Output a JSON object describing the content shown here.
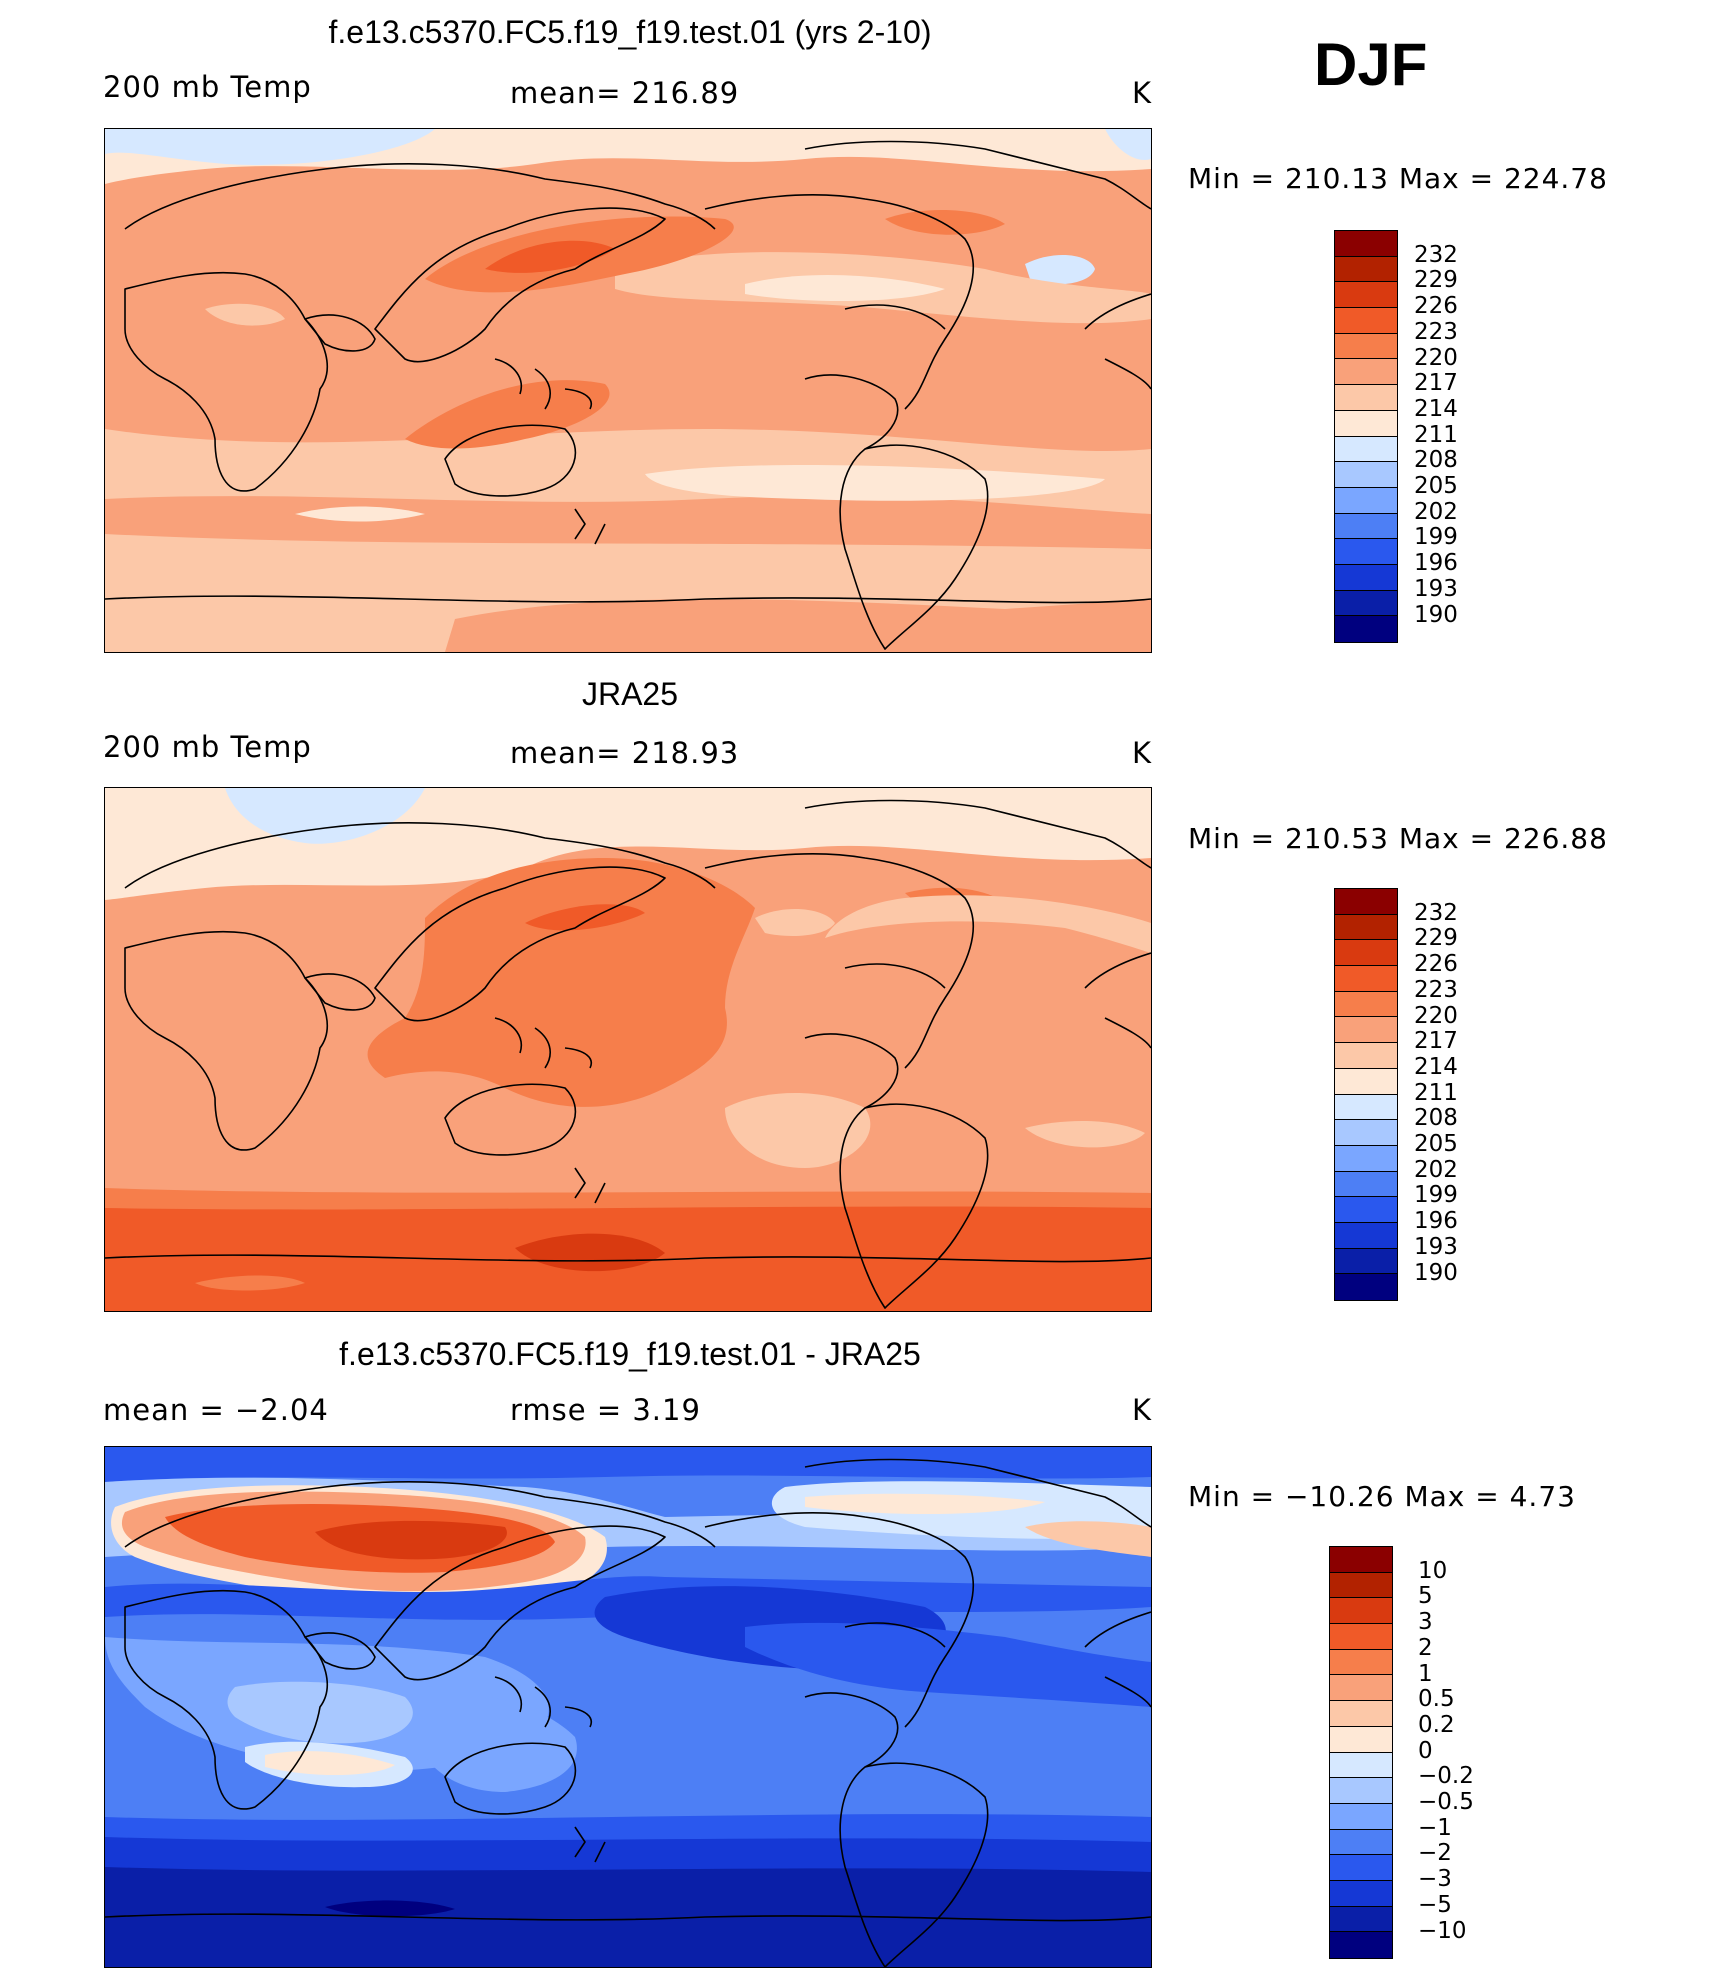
{
  "season": "DJF",
  "panels": [
    {
      "title": "f.e13.c5370.FC5.f19_f19.test.01 (yrs 2-10)",
      "left_label": "200 mb Temp",
      "center_label": "mean=  216.89",
      "units": "K",
      "minmax": "Min  =  210.13  Max  =  224.78",
      "colorbar": {
        "labels": [
          "232",
          "229",
          "226",
          "223",
          "220",
          "217",
          "214",
          "211",
          "208",
          "205",
          "202",
          "199",
          "196",
          "193",
          "190"
        ],
        "colors": [
          "#8b0000",
          "#b22200",
          "#d93a10",
          "#f05a28",
          "#f67e4b",
          "#f9a17a",
          "#fcc8a8",
          "#fee8d6",
          "#d6e8ff",
          "#a8c8ff",
          "#7aa6ff",
          "#4d7ff5",
          "#2a58ee",
          "#1538d5",
          "#0a1fa8",
          "#00007f"
        ]
      },
      "map_description": "model 200 mb temperature"
    },
    {
      "title": "JRA25",
      "left_label": "200 mb Temp",
      "center_label": "mean=  218.93",
      "units": "K",
      "minmax": "Min  =  210.53  Max  =  226.88",
      "colorbar": {
        "labels": [
          "232",
          "229",
          "226",
          "223",
          "220",
          "217",
          "214",
          "211",
          "208",
          "205",
          "202",
          "199",
          "196",
          "193",
          "190"
        ],
        "colors": [
          "#8b0000",
          "#b22200",
          "#d93a10",
          "#f05a28",
          "#f67e4b",
          "#f9a17a",
          "#fcc8a8",
          "#fee8d6",
          "#d6e8ff",
          "#a8c8ff",
          "#7aa6ff",
          "#4d7ff5",
          "#2a58ee",
          "#1538d5",
          "#0a1fa8",
          "#00007f"
        ]
      },
      "map_description": "reanalysis 200 mb temperature"
    },
    {
      "title": "f.e13.c5370.FC5.f19_f19.test.01 - JRA25",
      "left_label": "mean =    −2.04",
      "center_label": "rmse =     3.19",
      "units": "K",
      "minmax": "Min  = −10.26  Max  =      4.73",
      "colorbar": {
        "labels": [
          "10",
          "5",
          "3",
          "2",
          "1",
          "0.5",
          "0.2",
          "0",
          "−0.2",
          "−0.5",
          "−1",
          "−2",
          "−3",
          "−5",
          "−10"
        ],
        "colors": [
          "#8b0000",
          "#b22200",
          "#d93a10",
          "#f05a28",
          "#f67e4b",
          "#f9a17a",
          "#fcc8a8",
          "#fee8d6",
          "#d6e8ff",
          "#a8c8ff",
          "#7aa6ff",
          "#4d7ff5",
          "#2a58ee",
          "#1538d5",
          "#0a1fa8",
          "#00007f"
        ]
      },
      "map_description": "difference model minus reanalysis"
    }
  ]
}
